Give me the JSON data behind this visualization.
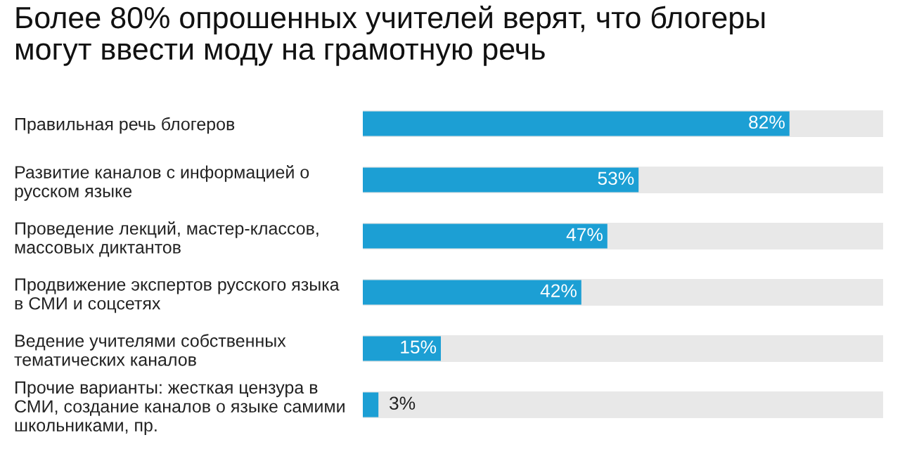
{
  "chart_data": {
    "type": "bar",
    "orientation": "horizontal",
    "title": "Более 80% опрошенных учителей верят, что блогеры\nмогут ввести моду на грамотную речь",
    "categories": [
      "Правильная речь блогеров",
      "Развитие каналов с информацией о\nрусском языке",
      "Проведение лекций, мастер-классов,\nмассовых диктантов",
      "Продвижение экспертов русского языка\nв СМИ и соцсетях",
      "Ведение учителями собственных\nтематических каналов",
      "Прочие варианты: жесткая цензура в\nСМИ, создание каналов о языке самими\nшкольниками, пр."
    ],
    "values": [
      82,
      53,
      47,
      42,
      15,
      3
    ],
    "value_labels": [
      "82%",
      "53%",
      "47%",
      "42%",
      "15%",
      "3%"
    ],
    "color": "#1c9fd4",
    "xlim": [
      0,
      100
    ],
    "tick_labels": "y"
  }
}
